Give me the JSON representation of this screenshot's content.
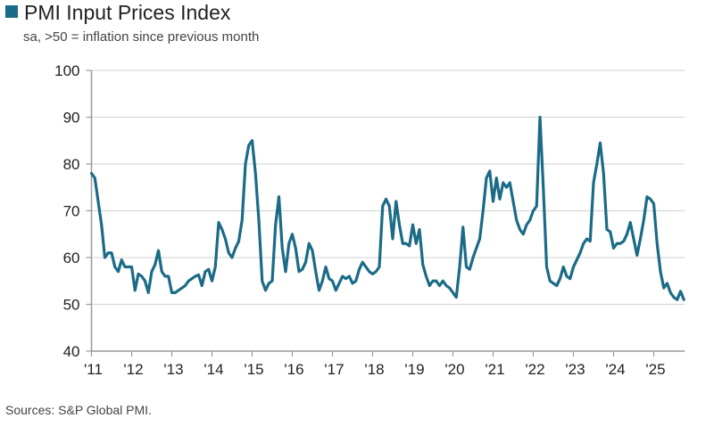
{
  "chart_data": {
    "type": "line",
    "title": "PMI Input Prices Index",
    "subtitle": "sa, >50 = inflation since previous month",
    "source": "Sources: S&P Global PMI.",
    "xlabel": "",
    "ylabel": "",
    "ylim": [
      40,
      100
    ],
    "yticks": [
      40,
      50,
      60,
      70,
      80,
      90,
      100
    ],
    "ytick_labels": [
      "40",
      "50",
      "60",
      "70",
      "80",
      "90",
      "100"
    ],
    "xtick_labels": [
      "'11",
      "'12",
      "'13",
      "'14",
      "'15",
      "'16",
      "'17",
      "'18",
      "'19",
      "'20",
      "'21",
      "'22",
      "'23",
      "'24",
      "'25"
    ],
    "x_start": "2011-01",
    "x_frequency": "monthly",
    "grid": true,
    "legend": "top-left",
    "series": [
      {
        "name": "PMI Input Prices Index",
        "color": "#1b6b87",
        "values": [
          78,
          77,
          72,
          67,
          60,
          61,
          61,
          58,
          57,
          59.5,
          58,
          58,
          58,
          53,
          56.5,
          56,
          55,
          52.5,
          57,
          58.5,
          61.5,
          57,
          56,
          56,
          52.5,
          52.5,
          53,
          53.5,
          54,
          55,
          55.5,
          56,
          56.3,
          54,
          57,
          57.5,
          55,
          58,
          67.5,
          66,
          64,
          61,
          60,
          62,
          63.5,
          68,
          80,
          84,
          85,
          78,
          68,
          55,
          53,
          54.5,
          55,
          67,
          73,
          62,
          57,
          63,
          65,
          62,
          57,
          57.5,
          59,
          63,
          61.5,
          57,
          53,
          55,
          58,
          55.5,
          55,
          53,
          54.5,
          56,
          55.5,
          56,
          54.5,
          55,
          57.5,
          59,
          58,
          57,
          56.5,
          57,
          58,
          71,
          72.5,
          71,
          64,
          72,
          67,
          63,
          63,
          62.5,
          67,
          63,
          66,
          58.5,
          56,
          54,
          55,
          55,
          54,
          55,
          54,
          53.5,
          52.5,
          51.5,
          58,
          66.5,
          58,
          57.5,
          60,
          62,
          64,
          70,
          77,
          78.5,
          72,
          77,
          72.5,
          76,
          75,
          76,
          72,
          68,
          66,
          65,
          67,
          68,
          70,
          71,
          90,
          75,
          58,
          55,
          54.5,
          54,
          55.5,
          58,
          56,
          55.5,
          58,
          59.5,
          61,
          63,
          64,
          63.5,
          76,
          80,
          84.5,
          78,
          66,
          65.5,
          62,
          63,
          63,
          63.5,
          65,
          67.5,
          64,
          60.5,
          64,
          68,
          73,
          72.5,
          71.5,
          63,
          57,
          53.5,
          54.5,
          52.5,
          51.5,
          51,
          52.8,
          51
        ]
      }
    ]
  }
}
